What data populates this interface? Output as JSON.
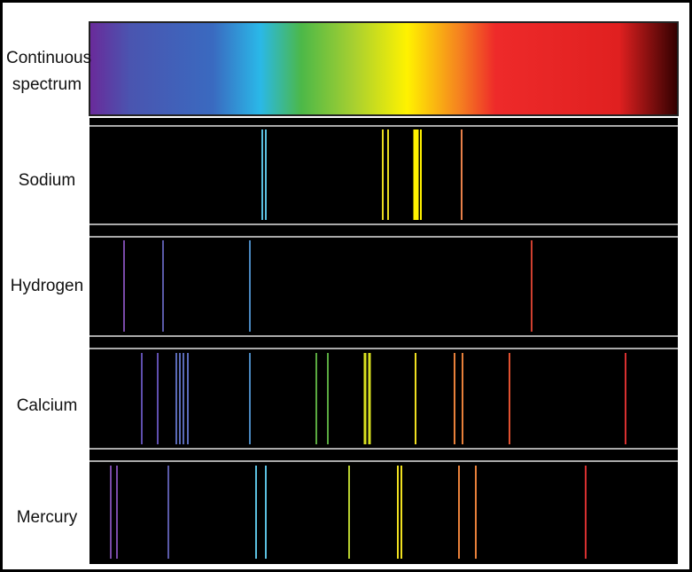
{
  "labels": {
    "continuous": "Continuous spectrum",
    "sodium": "Sodium",
    "hydrogen": "Hydrogen",
    "calcium": "Calcium",
    "mercury": "Mercury"
  }
}
